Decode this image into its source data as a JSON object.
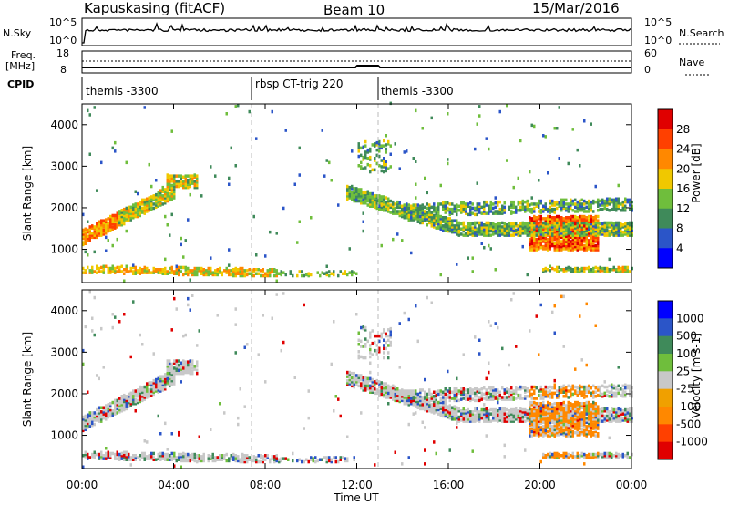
{
  "header": {
    "station": "Kapuskasing (fitACF)",
    "beam": "Beam 10",
    "date": "15/Mar/2016"
  },
  "noise_panel": {
    "left_label": "N.Sky",
    "right_label": "N.Search",
    "left_ticks": [
      "10^5",
      "10^0"
    ],
    "right_ticks": [
      "10^5",
      "10^0"
    ]
  },
  "freq_panel": {
    "left_label_top": "Freq.",
    "left_label_bottom": "[MHz]",
    "right_label": "Nave",
    "left_ticks": [
      "18",
      "8"
    ],
    "right_ticks": [
      "60",
      "0"
    ]
  },
  "cpid_panel": {
    "label": "CPID",
    "segments": [
      {
        "start_hour": 0.0,
        "end_hour": 7.5,
        "text": "themis -3300"
      },
      {
        "start_hour": 7.5,
        "end_hour": 13.0,
        "text": "rbsp CT-trig 220"
      },
      {
        "start_hour": 13.0,
        "end_hour": 24.0,
        "text": "themis -3300"
      }
    ]
  },
  "x_axis": {
    "label": "Time UT",
    "ticks": [
      "00:00",
      "04:00",
      "08:00",
      "12:00",
      "16:00",
      "20:00",
      "00:00"
    ],
    "range_hours": [
      0,
      24
    ]
  },
  "chart_data": [
    {
      "type": "heatmap",
      "name": "power",
      "ylabel": "Slant Range [km]",
      "yticks": [
        1000,
        2000,
        3000,
        4000
      ],
      "ylim": [
        200,
        4500
      ],
      "colorbar_label": "Power [dB]",
      "colorbar_ticks": [
        "28",
        "24",
        "20",
        "16",
        "12",
        "8",
        "4"
      ],
      "colorbar_colors": [
        "#0000ff",
        "#2b55c8",
        "#3f8a5a",
        "#6fbe3c",
        "#f0c800",
        "#ff8800",
        "#ff4000",
        "#e00000"
      ],
      "regions": [
        {
          "x": [
            0.0,
            4.0
          ],
          "y": [
            1100,
            2500
          ],
          "desc": "rising band"
        },
        {
          "x": [
            3.5,
            5.0
          ],
          "y": [
            2400,
            2800
          ],
          "desc": "upper patch"
        },
        {
          "x": [
            0.0,
            8.5
          ],
          "y": [
            300,
            600
          ],
          "desc": "near range echoes"
        },
        {
          "x": [
            11.5,
            24.0
          ],
          "y": [
            1300,
            2500
          ],
          "desc": "descending band"
        },
        {
          "x": [
            19.5,
            22.5
          ],
          "y": [
            800,
            1800
          ],
          "desc": "strong patches"
        }
      ]
    },
    {
      "type": "heatmap",
      "name": "velocity",
      "ylabel": "Slant Range [km]",
      "yticks": [
        1000,
        2000,
        3000,
        4000
      ],
      "ylim": [
        200,
        4500
      ],
      "colorbar_label": "Velocity [m s-1]",
      "colorbar_ticks": [
        "1000",
        "500",
        "100",
        "25",
        "-25",
        "-100",
        "-500",
        "-1000"
      ],
      "colorbar_colors": [
        "#e00000",
        "#ff4000",
        "#ff8800",
        "#f0a000",
        "#c8c8c8",
        "#6fbe3c",
        "#3f8a5a",
        "#2b55c8",
        "#0000ff"
      ]
    }
  ]
}
